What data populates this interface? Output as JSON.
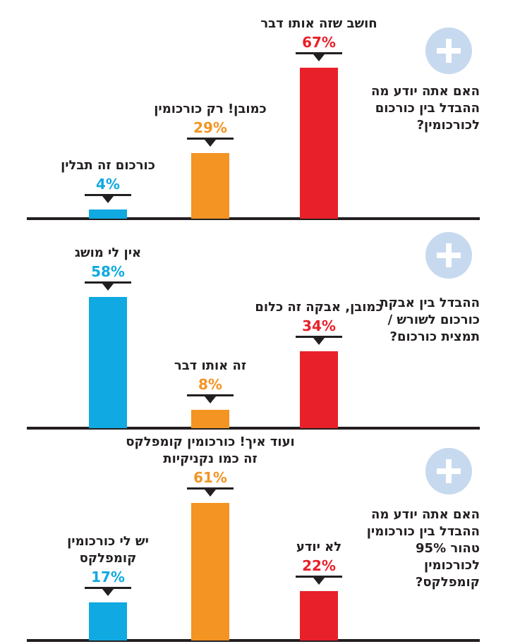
{
  "chart_data": [
    {
      "type": "bar",
      "title": "האם אתה יודע מה ההבדל בין כורכום לכורכומין?",
      "categories": [
        "כורכום זה תבלין",
        "כמובן! רק כורכומין",
        "חושב שזה אותו דבר"
      ],
      "values": [
        4,
        29,
        67
      ],
      "value_labels": [
        "4%",
        "29%",
        "67%"
      ],
      "colors": [
        "#10a9e1",
        "#f39423",
        "#e8202a"
      ]
    },
    {
      "type": "bar",
      "title": "ההבדל בין אבקת כורכום לשורש / תמצית כורכום?",
      "categories": [
        "אין לי מושג",
        "זה אותו דבר",
        "כמובן, אבקה זה כלום"
      ],
      "values": [
        58,
        8,
        34
      ],
      "value_labels": [
        "58%",
        "8%",
        "34%"
      ],
      "colors": [
        "#10a9e1",
        "#f39423",
        "#e8202a"
      ]
    },
    {
      "type": "bar",
      "title": "האם אתה יודע מה ההבדל בין כורכומין טהור 95% לכורכומין קומפלקס?",
      "categories": [
        "יש לי כורכומין קומפלקס",
        "ועוד איך! כורכומין קומפלקס זה כמו נקניקיות",
        "לא יודע"
      ],
      "values": [
        17,
        61,
        22
      ],
      "value_labels": [
        "17%",
        "61%",
        "22%"
      ],
      "colors": [
        "#10a9e1",
        "#f39423",
        "#e8202a"
      ]
    }
  ]
}
